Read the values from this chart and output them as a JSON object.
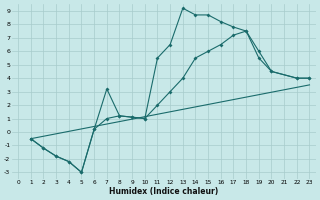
{
  "xlabel": "Humidex (Indice chaleur)",
  "xlim": [
    -0.5,
    23.5
  ],
  "ylim": [
    -3.5,
    9.5
  ],
  "xticks": [
    0,
    1,
    2,
    3,
    4,
    5,
    6,
    7,
    8,
    9,
    10,
    11,
    12,
    13,
    14,
    15,
    16,
    17,
    18,
    19,
    20,
    21,
    22,
    23
  ],
  "yticks": [
    -3,
    -2,
    -1,
    0,
    1,
    2,
    3,
    4,
    5,
    6,
    7,
    8,
    9
  ],
  "bg_color": "#c8e8e8",
  "grid_color": "#a8cccc",
  "line_color": "#1a6b6b",
  "line1_x": [
    1,
    2,
    3,
    4,
    5,
    6,
    7,
    8,
    9,
    10,
    11,
    12,
    13,
    14,
    15,
    16,
    17,
    18,
    19,
    20,
    22,
    23
  ],
  "line1_y": [
    -0.5,
    -1.2,
    -1.8,
    -2.2,
    -3.0,
    0.2,
    3.2,
    1.2,
    1.1,
    1.0,
    5.5,
    6.5,
    9.2,
    8.7,
    8.7,
    8.2,
    7.8,
    7.5,
    6.0,
    4.5,
    4.0,
    4.0
  ],
  "line2_x": [
    1,
    2,
    3,
    4,
    5,
    6,
    7,
    8,
    9,
    10,
    11,
    12,
    13,
    14,
    15,
    16,
    17,
    18,
    19,
    20,
    22,
    23
  ],
  "line2_y": [
    -0.5,
    -1.2,
    -1.8,
    -2.2,
    -3.0,
    0.2,
    1.0,
    1.2,
    1.1,
    1.0,
    2.0,
    3.0,
    4.0,
    5.5,
    6.0,
    6.5,
    7.2,
    7.5,
    5.5,
    4.5,
    4.0,
    4.0
  ],
  "line3_x": [
    1,
    23
  ],
  "line3_y": [
    -0.5,
    3.5
  ],
  "marker": "D",
  "markersize": 2.0,
  "linewidth": 0.8
}
